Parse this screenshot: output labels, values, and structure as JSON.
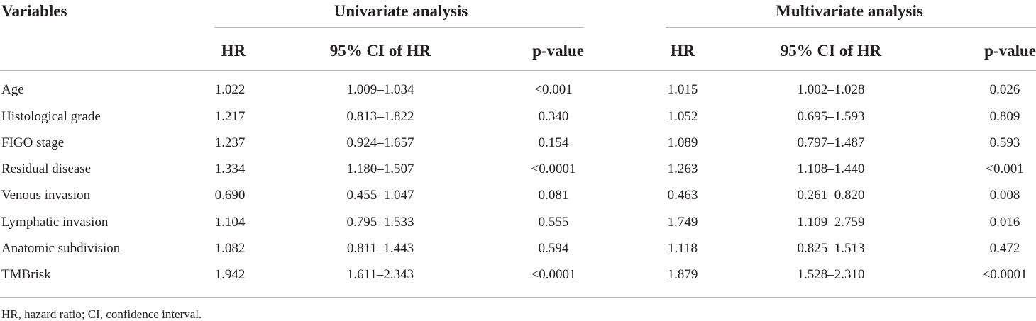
{
  "table": {
    "header": {
      "variables": "Variables",
      "group_univariate": "Univariate analysis",
      "group_multivariate": "Multivariate analysis",
      "subcolumns": [
        "HR",
        "95% CI of HR",
        "p-value",
        "HR",
        "95% CI of HR",
        "p-value"
      ]
    },
    "rows": [
      {
        "label": "Age",
        "uni_hr": "1.022",
        "uni_ci": "1.009–1.034",
        "uni_p": "<0.001",
        "multi_hr": "1.015",
        "multi_ci": "1.002–1.028",
        "multi_p": "0.026"
      },
      {
        "label": "Histological grade",
        "uni_hr": "1.217",
        "uni_ci": "0.813–1.822",
        "uni_p": "0.340",
        "multi_hr": "1.052",
        "multi_ci": "0.695–1.593",
        "multi_p": "0.809"
      },
      {
        "label": "FIGO stage",
        "uni_hr": "1.237",
        "uni_ci": "0.924–1.657",
        "uni_p": "0.154",
        "multi_hr": "1.089",
        "multi_ci": "0.797–1.487",
        "multi_p": "0.593"
      },
      {
        "label": "Residual disease",
        "uni_hr": "1.334",
        "uni_ci": "1.180–1.507",
        "uni_p": "<0.0001",
        "multi_hr": "1.263",
        "multi_ci": "1.108–1.440",
        "multi_p": "<0.001"
      },
      {
        "label": "Venous invasion",
        "uni_hr": "0.690",
        "uni_ci": "0.455–1.047",
        "uni_p": "0.081",
        "multi_hr": "0.463",
        "multi_ci": "0.261–0.820",
        "multi_p": "0.008"
      },
      {
        "label": "Lymphatic invasion",
        "uni_hr": "1.104",
        "uni_ci": "0.795–1.533",
        "uni_p": "0.555",
        "multi_hr": "1.749",
        "multi_ci": "1.109–2.759",
        "multi_p": "0.016"
      },
      {
        "label": "Anatomic subdivision",
        "uni_hr": "1.082",
        "uni_ci": "0.811–1.443",
        "uni_p": "0.594",
        "multi_hr": "1.118",
        "multi_ci": "0.825–1.513",
        "multi_p": "0.472"
      },
      {
        "label": "TMBrisk",
        "uni_hr": "1.942",
        "uni_ci": "1.611–2.343",
        "uni_p": "<0.0001",
        "multi_hr": "1.879",
        "multi_ci": "1.528–2.310",
        "multi_p": "<0.0001"
      }
    ],
    "footnote": "HR, hazard ratio; CI, confidence interval."
  }
}
